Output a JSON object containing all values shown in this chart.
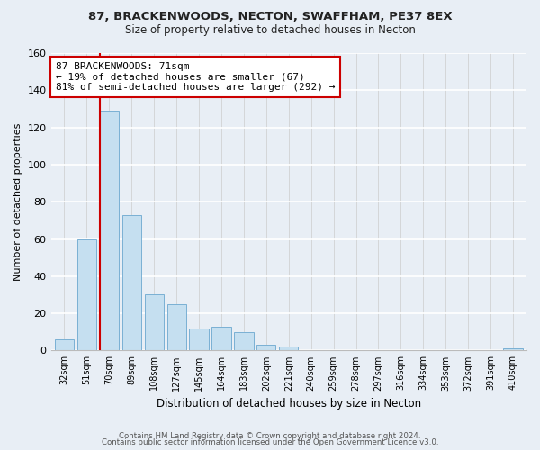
{
  "title1": "87, BRACKENWOODS, NECTON, SWAFFHAM, PE37 8EX",
  "title2": "Size of property relative to detached houses in Necton",
  "xlabel": "Distribution of detached houses by size in Necton",
  "ylabel": "Number of detached properties",
  "bar_labels": [
    "32sqm",
    "51sqm",
    "70sqm",
    "89sqm",
    "108sqm",
    "127sqm",
    "145sqm",
    "164sqm",
    "183sqm",
    "202sqm",
    "221sqm",
    "240sqm",
    "259sqm",
    "278sqm",
    "297sqm",
    "316sqm",
    "334sqm",
    "353sqm",
    "372sqm",
    "391sqm",
    "410sqm"
  ],
  "bar_values": [
    6,
    60,
    129,
    73,
    30,
    25,
    12,
    13,
    10,
    3,
    2,
    0,
    0,
    0,
    0,
    0,
    0,
    0,
    0,
    0,
    1
  ],
  "bar_color": "#c5dff0",
  "bar_edge_color": "#7ab0d4",
  "highlight_bar_index": 2,
  "highlight_line_color": "#cc0000",
  "annotation_text": "87 BRACKENWOODS: 71sqm\n← 19% of detached houses are smaller (67)\n81% of semi-detached houses are larger (292) →",
  "annotation_box_edge_color": "#cc0000",
  "annotation_box_face_color": "#ffffff",
  "ylim": [
    0,
    160
  ],
  "yticks": [
    0,
    20,
    40,
    60,
    80,
    100,
    120,
    140,
    160
  ],
  "footer1": "Contains HM Land Registry data © Crown copyright and database right 2024.",
  "footer2": "Contains public sector information licensed under the Open Government Licence v3.0.",
  "bg_color": "#e8eef5"
}
